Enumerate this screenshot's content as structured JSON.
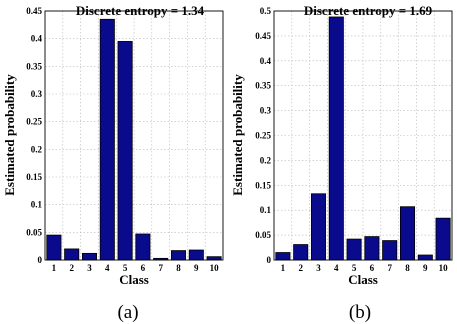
{
  "chart_data": [
    {
      "type": "bar",
      "title": "Discrete entropy = 1.34",
      "xlabel": "Class",
      "ylabel": "Estimated probability",
      "categories": [
        "1",
        "2",
        "3",
        "4",
        "5",
        "6",
        "7",
        "8",
        "9",
        "10"
      ],
      "values": [
        0.045,
        0.02,
        0.012,
        0.435,
        0.395,
        0.047,
        0.003,
        0.017,
        0.018,
        0.006
      ],
      "ylim": [
        0,
        0.45
      ],
      "yticks": [
        "0",
        "0.05",
        "0.1",
        "0.15",
        "0.2",
        "0.25",
        "0.3",
        "0.35",
        "0.4",
        "0.45"
      ],
      "grid": true,
      "bar_color": "#0a0a8c",
      "caption": "(a)"
    },
    {
      "type": "bar",
      "title": "Discrete entropy = 1.69",
      "xlabel": "Class",
      "ylabel": "Estimated probability",
      "categories": [
        "1",
        "2",
        "3",
        "4",
        "5",
        "6",
        "7",
        "8",
        "9",
        "10"
      ],
      "values": [
        0.015,
        0.031,
        0.133,
        0.488,
        0.042,
        0.047,
        0.039,
        0.107,
        0.01,
        0.084
      ],
      "ylim": [
        0,
        0.5
      ],
      "yticks": [
        "0",
        "0.05",
        "0.1",
        "0.15",
        "0.2",
        "0.25",
        "0.3",
        "0.35",
        "0.4",
        "0.45",
        "0.5"
      ],
      "grid": true,
      "bar_color": "#0a0a8c",
      "caption": "(b)"
    }
  ]
}
